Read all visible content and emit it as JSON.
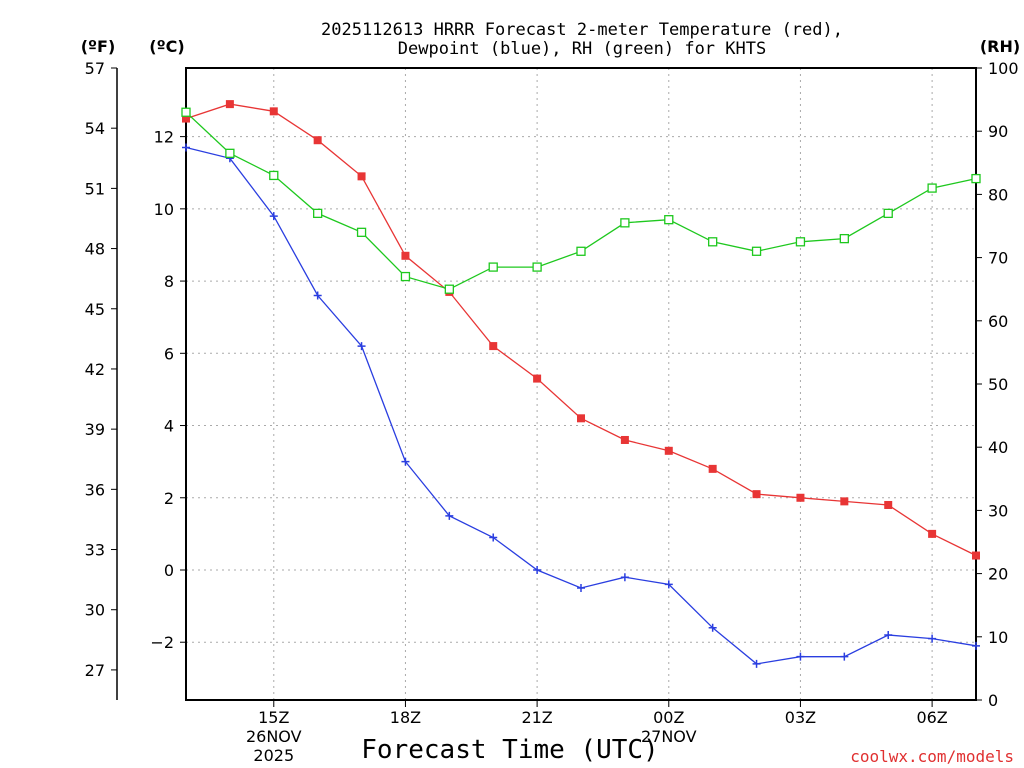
{
  "chart_data": {
    "type": "line",
    "title_line1": "2025112613 HRRR Forecast 2-meter Temperature (red),",
    "title_line2": "Dewpoint (blue), RH (green) for KHTS",
    "unit_f": "(ºF)",
    "unit_c": "(ºC)",
    "unit_rh": "(RH)",
    "xlabel": "Forecast Time (UTC)",
    "credit": "coolwx.com/models",
    "x_hours": [
      13,
      14,
      15,
      16,
      17,
      18,
      19,
      20,
      21,
      22,
      23,
      24,
      25,
      26,
      27,
      28,
      29,
      30,
      31
    ],
    "xlim": [
      13,
      31
    ],
    "x_ticks": [
      {
        "hour": 15,
        "label": "15Z",
        "date": "26NOV",
        "year": "2025"
      },
      {
        "hour": 18,
        "label": "18Z",
        "date": "",
        "year": ""
      },
      {
        "hour": 21,
        "label": "21Z",
        "date": "",
        "year": ""
      },
      {
        "hour": 24,
        "label": "00Z",
        "date": "27NOV",
        "year": ""
      },
      {
        "hour": 27,
        "label": "03Z",
        "date": "",
        "year": ""
      },
      {
        "hour": 30,
        "label": "06Z",
        "date": "",
        "year": ""
      }
    ],
    "celsius_axis": {
      "ylim": [
        -3.6,
        13.9
      ],
      "ticks": [
        -2,
        0,
        2,
        4,
        6,
        8,
        10,
        12
      ],
      "labels": [
        "−2",
        "0",
        "2",
        "4",
        "6",
        "8",
        "10",
        "12"
      ]
    },
    "fahrenheit_axis": {
      "ylim": [
        25.5,
        57
      ],
      "ticks": [
        27,
        30,
        33,
        36,
        39,
        42,
        45,
        48,
        51,
        54,
        57
      ],
      "labels": [
        "27",
        "30",
        "33",
        "36",
        "39",
        "42",
        "45",
        "48",
        "51",
        "54",
        "57"
      ]
    },
    "rh_axis": {
      "ylim": [
        0,
        100
      ],
      "ticks": [
        0,
        10,
        20,
        30,
        40,
        50,
        60,
        70,
        80,
        90,
        100
      ],
      "labels": [
        "0",
        "10",
        "20",
        "30",
        "40",
        "50",
        "60",
        "70",
        "80",
        "90",
        "100"
      ]
    },
    "series": [
      {
        "name": "Temperature",
        "axis": "celsius",
        "color": "#e83535",
        "marker": "filled-square",
        "values": [
          12.5,
          12.9,
          12.7,
          11.9,
          10.9,
          8.7,
          7.7,
          6.2,
          5.3,
          4.2,
          3.6,
          3.3,
          2.8,
          2.1,
          2.0,
          1.9,
          1.8,
          1.0,
          0.4
        ]
      },
      {
        "name": "Dewpoint",
        "axis": "celsius",
        "color": "#2a3ee0",
        "marker": "plus",
        "values": [
          11.7,
          11.4,
          9.8,
          7.6,
          6.2,
          3.0,
          1.5,
          0.9,
          0.0,
          -0.5,
          -0.2,
          -0.4,
          -1.6,
          -2.6,
          -2.4,
          -2.4,
          -1.8,
          -1.9,
          -2.1
        ]
      },
      {
        "name": "RH",
        "axis": "rh",
        "color": "#1ec81e",
        "marker": "open-square",
        "values": [
          93,
          86.5,
          83,
          77,
          74,
          67,
          65,
          68.5,
          68.5,
          71,
          75.5,
          76,
          72.5,
          71,
          72.5,
          73,
          77,
          81,
          82.5
        ]
      }
    ]
  }
}
